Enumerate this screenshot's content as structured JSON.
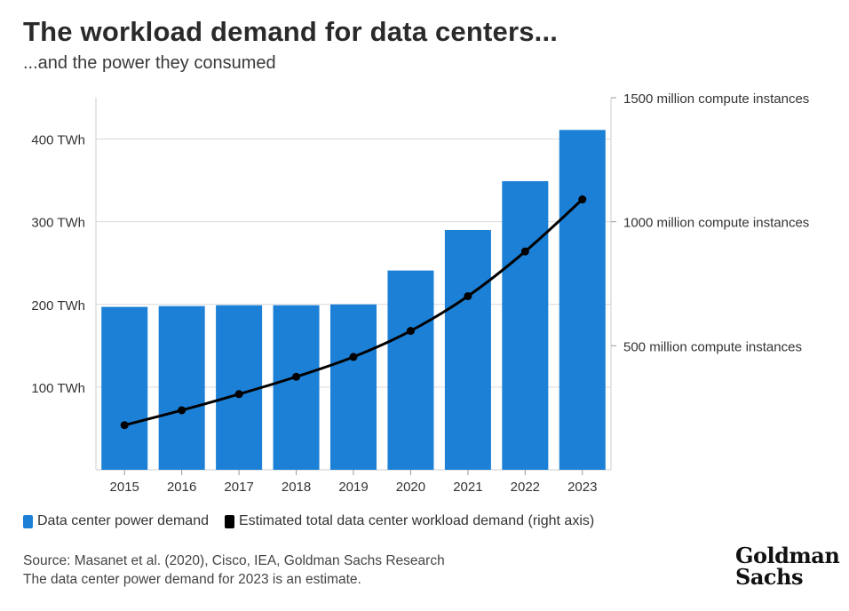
{
  "header": {
    "title": "The workload demand for data centers...",
    "subtitle": "...and the power they consumed"
  },
  "chart_data": {
    "type": "bar",
    "categories": [
      "2015",
      "2016",
      "2017",
      "2018",
      "2019",
      "2020",
      "2021",
      "2022",
      "2023"
    ],
    "series": [
      {
        "name": "Data center power demand",
        "type": "bar",
        "axis": "left",
        "color": "#1b80d6",
        "values": [
          197,
          198,
          199,
          199,
          200,
          241,
          290,
          349,
          411
        ]
      },
      {
        "name": "Estimated total data center workload demand (right axis)",
        "type": "line",
        "axis": "right",
        "color": "#000000",
        "values": [
          180,
          240,
          305,
          375,
          455,
          560,
          700,
          880,
          1090
        ]
      }
    ],
    "y_left": {
      "ticks": [
        100,
        200,
        300,
        400
      ],
      "tick_labels": [
        "100 TWh",
        "200 TWh",
        "300 TWh",
        "400 TWh"
      ],
      "ylim": [
        0,
        450
      ]
    },
    "y_right": {
      "ticks": [
        500,
        1000,
        1500
      ],
      "tick_labels": [
        "500 million compute instances",
        "1000 million compute instances",
        "1500 million compute instances"
      ],
      "ylim": [
        0,
        1500
      ]
    },
    "grid": true,
    "legend_position": "bottom-left"
  },
  "legend": [
    {
      "label": "Data center power demand",
      "color": "#1b80d6"
    },
    {
      "label": "Estimated total data center workload demand (right axis)",
      "color": "#000000"
    }
  ],
  "footer": {
    "source": "Source: Masanet et al. (2020), Cisco, IEA, Goldman Sachs Research",
    "note": "The data center power demand for 2023 is an estimate.",
    "logo_line1": "Goldman",
    "logo_line2": "Sachs"
  }
}
